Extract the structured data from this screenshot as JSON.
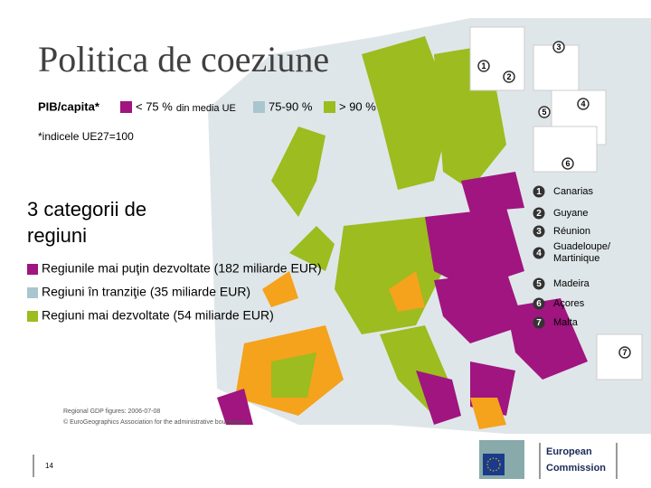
{
  "title": "Politica de coeziune",
  "legend": {
    "label": "PIB/capita*",
    "items": [
      {
        "label": "< 75 %",
        "sublabel": "din media UE",
        "color": "#a0157f"
      },
      {
        "label": "75-90 %",
        "color": "#a9c6cf"
      },
      {
        "label": "> 90 %",
        "color": "#9cbc1f"
      }
    ]
  },
  "note": "*indicele UE27=100",
  "subtitle": "3 categorii de regiuni",
  "categories": [
    {
      "label": "Regiunile mai puţin dezvoltate (182 miliarde EUR)",
      "color": "#a0157f"
    },
    {
      "label": "Regiuni în tranziţie (35 miliarde EUR)",
      "color": "#a9c6cf"
    },
    {
      "label": "Regiuni mai dezvoltate (54 miliarde EUR)",
      "color": "#9cbc1f"
    }
  ],
  "outermost": [
    {
      "number": "1",
      "name": "Canarias"
    },
    {
      "number": "2",
      "name": "Guyane"
    },
    {
      "number": "3",
      "name": "Réunion"
    },
    {
      "number": "4",
      "name": "Guadeloupe/ Martinique"
    },
    {
      "number": "5",
      "name": "Madeira"
    },
    {
      "number": "6",
      "name": "Açores"
    },
    {
      "number": "7",
      "name": "Malta"
    }
  ],
  "source": [
    "Regional GDP figures: 2006-07-08",
    "© EuroGeographics Association for the administrative boundaries"
  ],
  "page_number": "14",
  "logo": [
    "European",
    "Commission"
  ]
}
